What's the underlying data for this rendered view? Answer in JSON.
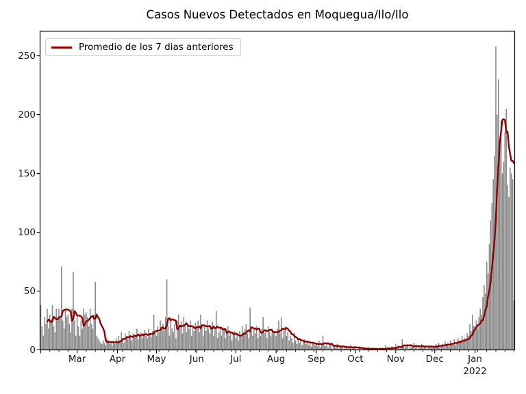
{
  "figure": {
    "title": "Casos Nuevos Detectados en Moquegua/Ilo/Ilo"
  },
  "legend": {
    "position": "upper left",
    "items": [
      {
        "label": "Promedio de los 7 dias anteriores",
        "color": "#8B0000",
        "marker": "line"
      }
    ]
  },
  "chart_data": {
    "type": "bar",
    "title": "Casos Nuevos Detectados en Moquegua/Ilo/Ilo",
    "xlabel": "",
    "ylabel": "",
    "grid": false,
    "legend_position": "upper left",
    "bar_color": "#8a8a8a",
    "line_color": "#8B0000",
    "x_start_date": "2021-02-01",
    "x_end_date": "2022-01-31",
    "days_total": 365,
    "ylim": [
      0,
      271
    ],
    "yticks": [
      0,
      50,
      100,
      150,
      200,
      250
    ],
    "x_major_ticks": [
      {
        "day": 0,
        "label": ""
      },
      {
        "day": 28,
        "label": "Mar"
      },
      {
        "day": 59,
        "label": "Apr"
      },
      {
        "day": 89,
        "label": "May"
      },
      {
        "day": 120,
        "label": "Jun"
      },
      {
        "day": 150,
        "label": "Jul"
      },
      {
        "day": 181,
        "label": "Aug"
      },
      {
        "day": 212,
        "label": "Sep"
      },
      {
        "day": 242,
        "label": "Oct"
      },
      {
        "day": 273,
        "label": "Nov"
      },
      {
        "day": 303,
        "label": "Dec"
      },
      {
        "day": 334,
        "label": "Jan",
        "sublabel": "2022"
      }
    ],
    "x_minor_tick_interval_days": 7,
    "series": [
      {
        "name": "casos-nuevos-diarios",
        "type": "bar",
        "values": [
          38,
          20,
          12,
          28,
          22,
          35,
          18,
          30,
          26,
          38,
          20,
          15,
          35,
          28,
          35,
          28,
          71,
          25,
          18,
          35,
          28,
          30,
          22,
          15,
          35,
          66,
          25,
          12,
          30,
          20,
          12,
          25,
          18,
          35,
          30,
          32,
          28,
          20,
          35,
          22,
          18,
          30,
          58,
          12,
          10,
          8,
          6,
          5,
          8,
          6,
          4,
          10,
          8,
          5,
          6,
          4,
          8,
          5,
          10,
          6,
          12,
          8,
          15,
          10,
          6,
          14,
          12,
          9,
          16,
          12,
          8,
          14,
          11,
          13,
          18,
          9,
          12,
          15,
          10,
          14,
          17,
          12,
          10,
          18,
          13,
          11,
          16,
          30,
          14,
          12,
          20,
          15,
          25,
          18,
          22,
          16,
          28,
          60,
          20,
          12,
          25,
          18,
          15,
          22,
          10,
          25,
          30,
          18,
          24,
          14,
          28,
          20,
          15,
          22,
          18,
          25,
          12,
          20,
          16,
          23,
          18,
          25,
          15,
          30,
          20,
          12,
          22,
          16,
          25,
          18,
          14,
          20,
          24,
          12,
          18,
          33,
          10,
          15,
          20,
          12,
          16,
          18,
          10,
          14,
          20,
          12,
          15,
          8,
          13,
          16,
          10,
          14,
          8,
          16,
          12,
          20,
          15,
          18,
          22,
          14,
          10,
          36,
          16,
          12,
          18,
          14,
          20,
          10,
          15,
          12,
          18,
          28,
          14,
          16,
          10,
          20,
          15,
          12,
          18,
          14,
          16,
          12,
          18,
          25,
          14,
          28,
          10,
          16,
          20,
          12,
          15,
          8,
          12,
          10,
          6,
          14,
          8,
          5,
          10,
          6,
          8,
          4,
          7,
          9,
          5,
          8,
          4,
          6,
          3,
          7,
          5,
          4,
          6,
          3,
          8,
          2,
          5,
          12,
          4,
          3,
          6,
          2,
          4,
          5,
          1,
          3,
          4,
          2,
          5,
          1,
          3,
          2,
          4,
          1,
          2,
          3,
          1,
          2,
          4,
          1,
          2,
          3,
          2,
          0,
          1,
          3,
          1,
          0,
          2,
          1,
          0,
          1,
          2,
          0,
          1,
          0,
          2,
          1,
          0,
          1,
          0,
          2,
          1,
          0,
          1,
          4,
          1,
          0,
          2,
          1,
          3,
          1,
          2,
          5,
          2,
          4,
          1,
          3,
          9,
          4,
          2,
          3,
          5,
          1,
          4,
          2,
          3,
          6,
          2,
          4,
          1,
          3,
          2,
          5,
          2,
          3,
          4,
          1,
          3,
          2,
          4,
          2,
          3,
          2,
          5,
          3,
          6,
          2,
          4,
          5,
          3,
          7,
          4,
          6,
          3,
          8,
          5,
          6,
          9,
          4,
          7,
          10,
          6,
          8,
          12,
          7,
          10,
          8,
          14,
          12,
          22,
          16,
          30,
          20,
          20,
          25,
          18,
          28,
          35,
          30,
          45,
          55,
          48,
          75,
          65,
          90,
          110,
          125,
          145,
          165,
          258,
          200,
          230,
          175,
          195,
          150,
          160,
          185,
          205,
          140,
          130,
          155,
          150,
          145,
          42
        ]
      },
      {
        "name": "promedio-7-dias",
        "type": "line",
        "label": "Promedio de los 7 dias anteriores",
        "derived": "trailing_mean_of_previous_7_days_of_bar_series",
        "peak_value_approx": 195,
        "end_value_approx": 158
      }
    ]
  }
}
